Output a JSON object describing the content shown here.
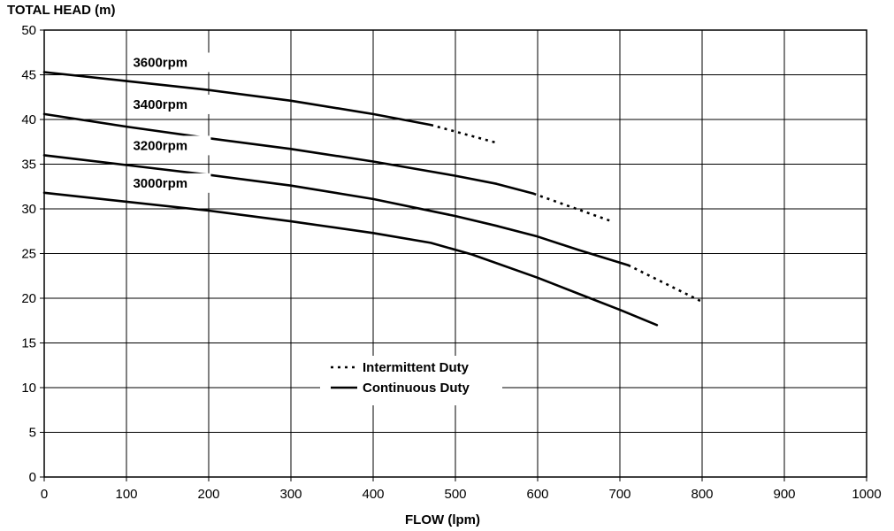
{
  "chart_data": {
    "type": "line",
    "ylabel": "TOTAL HEAD (m)",
    "xlabel": "FLOW (lpm)",
    "xlim": [
      0,
      1000
    ],
    "ylim": [
      0,
      50
    ],
    "x_ticks": [
      "0",
      "100",
      "200",
      "300",
      "400",
      "500",
      "600",
      "700",
      "800",
      "900",
      "1000"
    ],
    "y_ticks": [
      "0",
      "5",
      "10",
      "15",
      "20",
      "25",
      "30",
      "35",
      "40",
      "45",
      "50"
    ],
    "grid": true,
    "legend": {
      "position": "center-bottom",
      "entries": [
        {
          "label": "Intermittent Duty",
          "style": "dotted"
        },
        {
          "label": "Continuous Duty",
          "style": "solid"
        }
      ]
    },
    "series": [
      {
        "name": "3600rpm",
        "continuous": [
          [
            0,
            45.3
          ],
          [
            100,
            44.3
          ],
          [
            200,
            43.3
          ],
          [
            300,
            42.1
          ],
          [
            400,
            40.6
          ],
          [
            470,
            39.4
          ]
        ],
        "intermittent": [
          [
            470,
            39.4
          ],
          [
            550,
            37.4
          ]
        ]
      },
      {
        "name": "3400rpm",
        "continuous": [
          [
            0,
            40.6
          ],
          [
            100,
            39.2
          ],
          [
            200,
            37.9
          ],
          [
            300,
            36.7
          ],
          [
            400,
            35.3
          ],
          [
            500,
            33.7
          ],
          [
            550,
            32.8
          ],
          [
            595,
            31.7
          ]
        ],
        "intermittent": [
          [
            595,
            31.7
          ],
          [
            690,
            28.6
          ]
        ]
      },
      {
        "name": "3200rpm",
        "continuous": [
          [
            0,
            36.0
          ],
          [
            100,
            34.9
          ],
          [
            200,
            33.8
          ],
          [
            300,
            32.6
          ],
          [
            400,
            31.1
          ],
          [
            500,
            29.2
          ],
          [
            550,
            28.1
          ],
          [
            600,
            26.9
          ],
          [
            650,
            25.4
          ],
          [
            710,
            23.7
          ]
        ],
        "intermittent": [
          [
            710,
            23.7
          ],
          [
            800,
            19.6
          ]
        ]
      },
      {
        "name": "3000rpm",
        "continuous": [
          [
            0,
            31.8
          ],
          [
            100,
            30.8
          ],
          [
            200,
            29.8
          ],
          [
            300,
            28.6
          ],
          [
            400,
            27.3
          ],
          [
            470,
            26.2
          ],
          [
            520,
            24.9
          ],
          [
            600,
            22.3
          ],
          [
            650,
            20.5
          ],
          [
            700,
            18.7
          ],
          [
            745,
            17.0
          ]
        ],
        "intermittent": []
      }
    ]
  }
}
